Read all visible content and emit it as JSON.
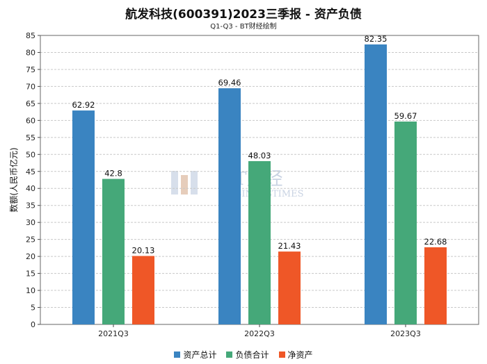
{
  "chart_data": {
    "type": "bar",
    "title": "航发科技(600391)2023三季报 - 资产负债",
    "subtitle": "Q1-Q3 - BT财经绘制",
    "ylabel": "数额(人民币亿元)",
    "xlabel": "",
    "ylim": [
      0,
      85
    ],
    "ytick_step": 5,
    "categories": [
      "2021Q3",
      "2022Q3",
      "2023Q3"
    ],
    "series": [
      {
        "name": "资产总计",
        "color": "#3a84c1",
        "values": [
          62.92,
          69.46,
          82.35
        ],
        "labels": [
          "62.92",
          "69.46",
          "82.35"
        ]
      },
      {
        "name": "负债合计",
        "color": "#45a879",
        "values": [
          42.8,
          48.03,
          59.67
        ],
        "labels": [
          "42.8",
          "48.03",
          "59.67"
        ]
      },
      {
        "name": "净资产",
        "color": "#ef5727",
        "values": [
          20.13,
          21.43,
          22.68
        ],
        "labels": [
          "20.13",
          "21.43",
          "22.68"
        ]
      }
    ],
    "grid": true,
    "legend_position": "bottom",
    "watermark": {
      "line1": "BT财经",
      "line2": "BUSINESSTIMES"
    }
  }
}
